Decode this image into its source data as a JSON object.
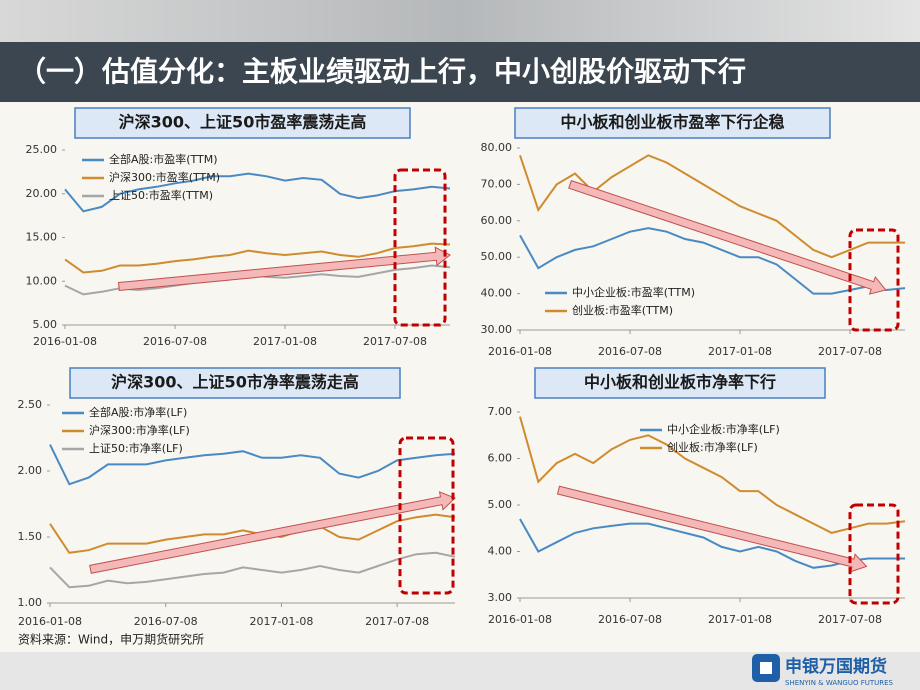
{
  "title": "（一）估值分化：主板业绩驱动上行，中小创股价驱动下行",
  "source": "资料来源：Wind，申万期货研究所",
  "logo": {
    "name": "申银万国期货",
    "english": "SHENYIN & WANGUO FUTURES"
  },
  "chart_data": [
    {
      "type": "line",
      "title": "沪深300、上证50市盈率震荡走高",
      "categories": [
        "2016-01-08",
        null,
        null,
        null,
        null,
        null,
        "2016-07-08",
        null,
        null,
        null,
        null,
        null,
        "2017-01-08",
        null,
        null,
        null,
        null,
        null,
        "2017-07-08",
        null,
        null,
        null
      ],
      "ylim": [
        5,
        25
      ],
      "yticks": [
        {
          "value": 5,
          "label": "5.00"
        },
        {
          "value": 10,
          "label": "10.00"
        },
        {
          "value": 15,
          "label": "15.00"
        },
        {
          "value": 20,
          "label": "20.00"
        },
        {
          "value": 25,
          "label": "25.00"
        }
      ],
      "series": [
        {
          "name": "全部A股:市盈率(TTM)",
          "color": "#4a8ac4",
          "values": [
            20.5,
            18.0,
            18.5,
            20.0,
            20.5,
            20.8,
            21.2,
            21.5,
            22.0,
            22.0,
            22.3,
            22.0,
            21.5,
            21.8,
            21.6,
            20.0,
            19.5,
            19.8,
            20.3,
            20.5,
            20.8,
            20.6
          ]
        },
        {
          "name": "沪深300:市盈率(TTM)",
          "color": "#d08b2f",
          "values": [
            12.5,
            11.0,
            11.2,
            11.8,
            11.8,
            12.0,
            12.3,
            12.5,
            12.8,
            13.0,
            13.5,
            13.2,
            13.0,
            13.2,
            13.4,
            13.0,
            12.8,
            13.2,
            13.8,
            14.0,
            14.3,
            14.2
          ]
        },
        {
          "name": "上证50:市盈率(TTM)",
          "color": "#a6a6a6",
          "values": [
            9.5,
            8.5,
            8.8,
            9.2,
            9.0,
            9.2,
            9.5,
            9.8,
            10.0,
            10.2,
            10.8,
            10.5,
            10.4,
            10.6,
            10.8,
            10.6,
            10.5,
            10.9,
            11.3,
            11.5,
            11.8,
            11.6
          ]
        }
      ]
    },
    {
      "type": "line",
      "title": "中小板和创业板市盈率下行企稳",
      "categories": [
        "2016-01-08",
        null,
        null,
        null,
        null,
        null,
        "2016-07-08",
        null,
        null,
        null,
        null,
        null,
        "2017-01-08",
        null,
        null,
        null,
        null,
        null,
        "2017-07-08",
        null,
        null,
        null
      ],
      "ylim": [
        30,
        80
      ],
      "yticks": [
        {
          "value": 30,
          "label": "30.00"
        },
        {
          "value": 40,
          "label": "40.00"
        },
        {
          "value": 50,
          "label": "50.00"
        },
        {
          "value": 60,
          "label": "60.00"
        },
        {
          "value": 70,
          "label": "70.00"
        },
        {
          "value": 80,
          "label": "80.00"
        }
      ],
      "series": [
        {
          "name": "中小企业板:市盈率(TTM)",
          "color": "#4a8ac4",
          "values": [
            56,
            47,
            50,
            52,
            53,
            55,
            57,
            58,
            57,
            55,
            54,
            52,
            50,
            50,
            48,
            44,
            40,
            40,
            41,
            42,
            41,
            41.5
          ]
        },
        {
          "name": "创业板:市盈率(TTM)",
          "color": "#d08b2f",
          "values": [
            78,
            63,
            70,
            73,
            68,
            72,
            75,
            78,
            76,
            73,
            70,
            67,
            64,
            62,
            60,
            56,
            52,
            50,
            52,
            54,
            54,
            54
          ]
        }
      ]
    },
    {
      "type": "line",
      "title": "沪深300、上证50市净率震荡走高",
      "categories": [
        "2016-01-08",
        null,
        null,
        null,
        null,
        null,
        "2016-07-08",
        null,
        null,
        null,
        null,
        null,
        "2017-01-08",
        null,
        null,
        null,
        null,
        null,
        "2017-07-08",
        null,
        null,
        null
      ],
      "ylim": [
        1,
        2.5
      ],
      "yticks": [
        {
          "value": 1,
          "label": "1.00"
        },
        {
          "value": 1.5,
          "label": "1.50"
        },
        {
          "value": 2,
          "label": "2.00"
        },
        {
          "value": 2.5,
          "label": "2.50"
        }
      ],
      "series": [
        {
          "name": "全部A股:市净率(LF)",
          "color": "#4a8ac4",
          "values": [
            2.2,
            1.9,
            1.95,
            2.05,
            2.05,
            2.05,
            2.08,
            2.1,
            2.12,
            2.13,
            2.15,
            2.1,
            2.1,
            2.12,
            2.1,
            1.98,
            1.95,
            2.0,
            2.08,
            2.1,
            2.12,
            2.13
          ]
        },
        {
          "name": "沪深300:市净率(LF)",
          "color": "#d08b2f",
          "values": [
            1.6,
            1.38,
            1.4,
            1.45,
            1.45,
            1.45,
            1.48,
            1.5,
            1.52,
            1.52,
            1.55,
            1.52,
            1.5,
            1.55,
            1.58,
            1.5,
            1.48,
            1.55,
            1.62,
            1.65,
            1.67,
            1.65
          ]
        },
        {
          "name": "上证50:市净率(LF)",
          "color": "#a6a6a6",
          "values": [
            1.27,
            1.12,
            1.13,
            1.17,
            1.15,
            1.16,
            1.18,
            1.2,
            1.22,
            1.23,
            1.27,
            1.25,
            1.23,
            1.25,
            1.28,
            1.25,
            1.23,
            1.28,
            1.33,
            1.37,
            1.38,
            1.35
          ]
        }
      ]
    },
    {
      "type": "line",
      "title": "中小板和创业板市净率下行",
      "categories": [
        "2016-01-08",
        null,
        null,
        null,
        null,
        null,
        "2016-07-08",
        null,
        null,
        null,
        null,
        null,
        "2017-01-08",
        null,
        null,
        null,
        null,
        null,
        "2017-07-08",
        null,
        null,
        null
      ],
      "ylim": [
        3,
        7
      ],
      "yticks": [
        {
          "value": 3,
          "label": "3.00"
        },
        {
          "value": 4,
          "label": "4.00"
        },
        {
          "value": 5,
          "label": "5.00"
        },
        {
          "value": 6,
          "label": "6.00"
        },
        {
          "value": 7,
          "label": "7.00"
        }
      ],
      "series": [
        {
          "name": "中小企业板:市净率(LF)",
          "color": "#4a8ac4",
          "values": [
            4.7,
            4.0,
            4.2,
            4.4,
            4.5,
            4.55,
            4.6,
            4.6,
            4.5,
            4.4,
            4.3,
            4.1,
            4.0,
            4.1,
            4.0,
            3.8,
            3.65,
            3.7,
            3.8,
            3.85,
            3.85,
            3.85
          ]
        },
        {
          "name": "创业板:市净率(LF)",
          "color": "#d08b2f",
          "values": [
            6.9,
            5.5,
            5.9,
            6.1,
            5.9,
            6.2,
            6.4,
            6.5,
            6.3,
            6.0,
            5.8,
            5.6,
            5.3,
            5.3,
            5.0,
            4.8,
            4.6,
            4.4,
            4.5,
            4.6,
            4.6,
            4.65
          ]
        }
      ]
    }
  ]
}
